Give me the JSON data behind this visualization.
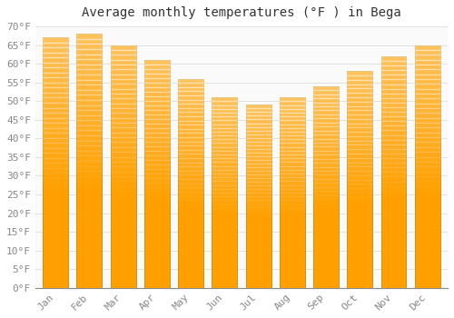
{
  "title": "Average monthly temperatures (°F ) in Bega",
  "months": [
    "Jan",
    "Feb",
    "Mar",
    "Apr",
    "May",
    "Jun",
    "Jul",
    "Aug",
    "Sep",
    "Oct",
    "Nov",
    "Dec"
  ],
  "values": [
    67,
    68,
    65,
    61,
    56,
    51,
    49,
    51,
    54,
    58,
    62,
    65
  ],
  "bar_color_top": "#FFCC44",
  "bar_color_bottom": "#FFA000",
  "bar_edge_color": "#CC8800",
  "background_color": "#FFFFFF",
  "plot_bg_color": "#FAFAFA",
  "ylim": [
    0,
    70
  ],
  "yticks": [
    0,
    5,
    10,
    15,
    20,
    25,
    30,
    35,
    40,
    45,
    50,
    55,
    60,
    65,
    70
  ],
  "ylabel_suffix": "°F",
  "grid_color": "#DDDDDD",
  "title_fontsize": 10,
  "tick_fontsize": 8,
  "tick_color": "#888888",
  "label_color": "#888888",
  "bar_width": 0.75
}
